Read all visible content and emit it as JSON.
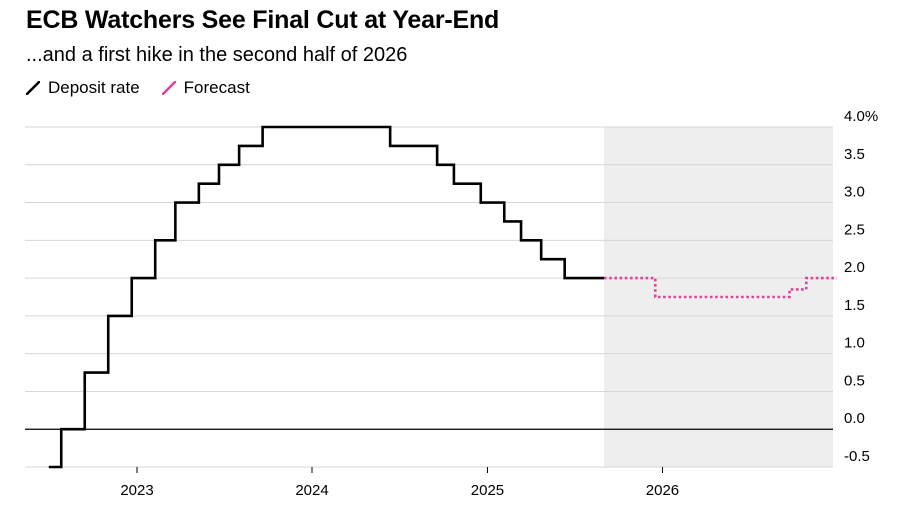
{
  "colors": {
    "deposit": "#000000",
    "forecast": "#e0449a",
    "forecast_band": "#eeeeee",
    "grid": "#d6d6d6",
    "zero_line": "#000000"
  },
  "chart_data": {
    "type": "line",
    "title": "ECB Watchers See Final Cut at Year-End",
    "subtitle": "...and a first hike in the second half of 2026",
    "legend": {
      "placement": "top-left",
      "entries": [
        "Deposit rate",
        "Forecast"
      ]
    },
    "grid": true,
    "y_axis": {
      "position": "right",
      "range": [
        -0.5,
        4.0
      ],
      "ticks": [
        4.0,
        3.5,
        3.0,
        2.5,
        2.0,
        1.5,
        1.0,
        0.5,
        0.0,
        -0.5
      ],
      "tick_labels": [
        "4.0%",
        "3.5",
        "3.0",
        "2.5",
        "2.0",
        "1.5",
        "1.0",
        "0.5",
        "0.0",
        "-0.5"
      ]
    },
    "x_axis": {
      "range": [
        "2022-07-01",
        "2026-12-31"
      ],
      "ticks": [
        "2023-01-01",
        "2024-01-01",
        "2025-01-01",
        "2026-01-01"
      ],
      "tick_labels": [
        "2023",
        "2024",
        "2025",
        "2026"
      ]
    },
    "forecast_band": [
      "2025-09-01",
      "2026-12-31"
    ],
    "series": [
      {
        "name": "Deposit rate",
        "style": "step",
        "points": [
          [
            "2022-07-01",
            -0.5
          ],
          [
            "2022-07-27",
            0.0
          ],
          [
            "2022-09-14",
            0.75
          ],
          [
            "2022-11-02",
            1.5
          ],
          [
            "2022-12-21",
            2.0
          ],
          [
            "2023-02-08",
            2.5
          ],
          [
            "2023-03-22",
            3.0
          ],
          [
            "2023-05-10",
            3.25
          ],
          [
            "2023-06-21",
            3.5
          ],
          [
            "2023-08-02",
            3.75
          ],
          [
            "2023-09-20",
            4.0
          ],
          [
            "2024-06-12",
            3.75
          ],
          [
            "2024-09-18",
            3.5
          ],
          [
            "2024-10-23",
            3.25
          ],
          [
            "2024-12-18",
            3.0
          ],
          [
            "2025-02-05",
            2.75
          ],
          [
            "2025-03-12",
            2.5
          ],
          [
            "2025-04-23",
            2.25
          ],
          [
            "2025-06-11",
            2.0
          ],
          [
            "2025-09-01",
            2.0
          ]
        ]
      },
      {
        "name": "Forecast",
        "style": "step-dotted",
        "points": [
          [
            "2025-09-01",
            2.0
          ],
          [
            "2025-12-17",
            1.75
          ],
          [
            "2026-09-23",
            1.85
          ],
          [
            "2026-10-28",
            2.0
          ],
          [
            "2026-12-31",
            2.0
          ]
        ]
      }
    ]
  }
}
